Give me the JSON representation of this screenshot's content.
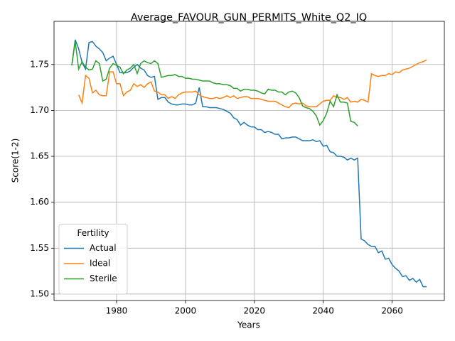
{
  "chart_data": {
    "type": "line",
    "title": "Average_FAVOUR_GUN_PERMITS_White_Q2_IQ",
    "xlabel": "Years",
    "ylabel": "Score(1-2)",
    "legend_title": "Fertility",
    "legend_loc": "lower left",
    "grid": true,
    "xlim": [
      1961.85,
      2075.15
    ],
    "ylim": [
      1.493,
      1.797
    ],
    "xticks": [
      1980,
      2000,
      2020,
      2040,
      2060
    ],
    "yticks": [
      {
        "value": 1.5,
        "label": "1.50"
      },
      1.55,
      {
        "value": 1.6,
        "label": "1.60"
      },
      1.65,
      {
        "value": 1.7,
        "label": "1.70"
      },
      1.75
    ],
    "x": [
      1967,
      1968,
      1969,
      1970,
      1971,
      1972,
      1973,
      1974,
      1975,
      1976,
      1977,
      1978,
      1979,
      1980,
      1981,
      1982,
      1983,
      1984,
      1985,
      1986,
      1987,
      1988,
      1989,
      1990,
      1991,
      1992,
      1993,
      1994,
      1995,
      1996,
      1997,
      1998,
      1999,
      2000,
      2001,
      2002,
      2003,
      2004,
      2005,
      2006,
      2007,
      2008,
      2009,
      2010,
      2011,
      2012,
      2013,
      2014,
      2015,
      2016,
      2017,
      2018,
      2019,
      2020,
      2021,
      2022,
      2023,
      2024,
      2025,
      2026,
      2027,
      2028,
      2029,
      2030,
      2031,
      2032,
      2033,
      2034,
      2035,
      2036,
      2037,
      2038,
      2039,
      2040,
      2041,
      2042,
      2043,
      2044,
      2045,
      2046,
      2047,
      2048,
      2049,
      2050,
      2051,
      2052,
      2053,
      2054,
      2055,
      2056,
      2057,
      2058,
      2059,
      2060,
      2061,
      2062,
      2063,
      2064,
      2065,
      2066,
      2067,
      2068,
      2069,
      2070
    ],
    "series": [
      {
        "name": "Actual",
        "color": "#1f77b4",
        "values": [
          1.749,
          1.777,
          1.767,
          1.752,
          1.745,
          1.774,
          1.775,
          1.77,
          1.767,
          1.763,
          1.754,
          1.757,
          1.759,
          1.75,
          1.741,
          1.741,
          1.741,
          1.743,
          1.747,
          1.75,
          1.746,
          1.744,
          1.738,
          1.736,
          1.737,
          1.712,
          1.714,
          1.714,
          1.709,
          1.707,
          1.706,
          1.706,
          1.707,
          1.707,
          1.706,
          1.706,
          1.708,
          1.725,
          1.704,
          1.704,
          1.703,
          1.703,
          1.703,
          1.702,
          1.701,
          1.699,
          1.697,
          1.692,
          1.69,
          1.684,
          1.687,
          1.684,
          1.682,
          1.682,
          1.679,
          1.679,
          1.676,
          1.677,
          1.676,
          1.674,
          1.674,
          1.669,
          1.67,
          1.67,
          1.671,
          1.671,
          1.669,
          1.667,
          1.667,
          1.667,
          1.668,
          1.666,
          1.667,
          1.661,
          1.662,
          1.655,
          1.654,
          1.65,
          1.65,
          1.649,
          1.646,
          1.648,
          1.646,
          1.648,
          1.56,
          1.558,
          1.554,
          1.552,
          1.552,
          1.545,
          1.547,
          1.538,
          1.539,
          1.532,
          1.528,
          1.525,
          1.519,
          1.52,
          1.515,
          1.517,
          1.513,
          1.516,
          1.508,
          1.508
        ]
      },
      {
        "name": "Ideal",
        "color": "#ff7f0e",
        "values": [
          null,
          null,
          1.717,
          1.708,
          1.738,
          1.735,
          1.719,
          1.722,
          1.717,
          1.716,
          1.716,
          1.742,
          1.742,
          1.729,
          1.729,
          1.716,
          1.72,
          1.722,
          1.729,
          1.726,
          1.728,
          1.725,
          1.729,
          1.731,
          1.721,
          1.72,
          1.717,
          1.717,
          1.713,
          1.715,
          1.713,
          1.717,
          1.719,
          1.72,
          1.72,
          1.72,
          1.721,
          1.717,
          1.715,
          1.714,
          1.713,
          1.713,
          1.714,
          1.713,
          1.714,
          1.716,
          1.714,
          1.716,
          1.713,
          1.714,
          1.715,
          1.715,
          1.713,
          1.713,
          1.713,
          1.712,
          1.711,
          1.71,
          1.71,
          1.71,
          1.708,
          1.706,
          1.704,
          1.703,
          1.707,
          1.708,
          1.707,
          1.708,
          1.705,
          1.704,
          1.704,
          1.704,
          1.707,
          1.71,
          1.711,
          1.711,
          1.716,
          1.714,
          1.714,
          1.712,
          1.714,
          1.709,
          1.71,
          1.709,
          1.712,
          1.711,
          1.709,
          1.74,
          1.738,
          1.737,
          1.738,
          1.738,
          1.74,
          1.739,
          1.742,
          1.741,
          1.744,
          1.745,
          1.746,
          1.748,
          1.75,
          1.752,
          1.753,
          1.755
        ]
      },
      {
        "name": "Sterile",
        "color": "#2ca02c",
        "values": [
          1.749,
          1.775,
          1.745,
          1.753,
          1.747,
          1.744,
          1.745,
          1.754,
          1.751,
          1.732,
          1.734,
          1.746,
          1.751,
          1.749,
          1.747,
          1.74,
          1.744,
          1.746,
          1.75,
          1.74,
          1.751,
          1.754,
          1.752,
          1.751,
          1.754,
          1.751,
          1.736,
          1.737,
          1.738,
          1.738,
          1.739,
          1.737,
          1.737,
          1.735,
          1.735,
          1.734,
          1.734,
          1.733,
          1.732,
          1.732,
          1.732,
          1.73,
          1.729,
          1.729,
          1.728,
          1.728,
          1.727,
          1.724,
          1.724,
          1.721,
          1.723,
          1.723,
          1.722,
          1.722,
          1.721,
          1.719,
          1.718,
          1.723,
          1.722,
          1.722,
          1.72,
          1.72,
          1.717,
          1.72,
          1.721,
          1.719,
          1.714,
          1.705,
          1.703,
          1.702,
          1.699,
          1.694,
          1.684,
          1.689,
          1.697,
          1.71,
          1.704,
          1.717,
          1.709,
          1.709,
          1.708,
          1.688,
          1.687,
          1.683,
          null,
          null,
          null,
          null,
          null,
          null,
          null,
          null,
          null,
          null,
          null,
          null,
          null,
          null,
          null,
          null,
          null,
          null,
          null,
          null
        ]
      }
    ]
  }
}
